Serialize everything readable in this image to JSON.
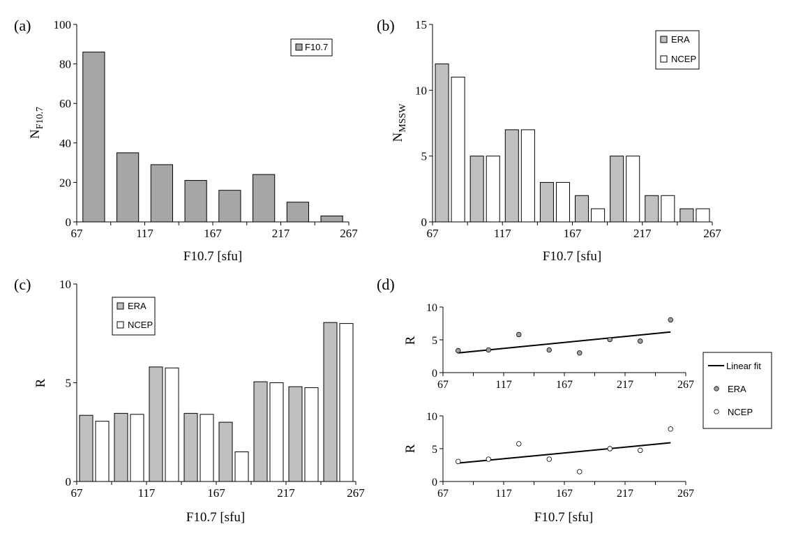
{
  "colors": {
    "era": "#c0c0c0",
    "f107": "#a6a6a6",
    "ncep": "#ffffff",
    "stroke": "#000000"
  },
  "chart_data": [
    {
      "id": "a",
      "panel_label": "(a)",
      "type": "bar",
      "xlabel": "F10.7 [sfu]",
      "ylabel": {
        "main": "N",
        "sub": "F10.7"
      },
      "xticks": [
        67,
        117,
        167,
        217,
        267
      ],
      "yticks": [
        0,
        20,
        40,
        60,
        80,
        100
      ],
      "ylim": [
        0,
        100
      ],
      "xlim": [
        67,
        267
      ],
      "categories": [
        "67-92",
        "92-117",
        "117-142",
        "142-167",
        "167-192",
        "192-217",
        "217-242",
        "242-267"
      ],
      "series": [
        {
          "name": "F10.7",
          "values": [
            86,
            35,
            29,
            21,
            16,
            24,
            10,
            3
          ]
        }
      ],
      "legend": {
        "position": "top-right",
        "entries": [
          "F10.7"
        ]
      }
    },
    {
      "id": "b",
      "panel_label": "(b)",
      "type": "bar",
      "xlabel": "F10.7 [sfu]",
      "ylabel": {
        "main": "N",
        "sub": "MSSW"
      },
      "xticks": [
        67,
        117,
        167,
        217,
        267
      ],
      "yticks": [
        0,
        5,
        10,
        15
      ],
      "ylim": [
        0,
        15
      ],
      "xlim": [
        67,
        267
      ],
      "categories": [
        "67-92",
        "92-117",
        "117-142",
        "142-167",
        "167-192",
        "192-217",
        "217-242",
        "242-267"
      ],
      "series": [
        {
          "name": "ERA",
          "values": [
            12,
            5,
            7,
            3,
            2,
            5,
            2,
            1
          ]
        },
        {
          "name": "NCEP",
          "values": [
            11,
            5,
            7,
            3,
            1,
            5,
            2,
            1
          ]
        }
      ],
      "legend": {
        "position": "top-right",
        "entries": [
          "ERA",
          "NCEP"
        ]
      }
    },
    {
      "id": "c",
      "panel_label": "(c)",
      "type": "bar",
      "xlabel": "F10.7 [sfu]",
      "ylabel": {
        "main": "R",
        "sub": ""
      },
      "xticks": [
        67,
        117,
        167,
        217,
        267
      ],
      "yticks": [
        0,
        5,
        10
      ],
      "ylim": [
        0,
        10
      ],
      "xlim": [
        67,
        267
      ],
      "categories": [
        "67-92",
        "92-117",
        "117-142",
        "142-167",
        "167-192",
        "192-217",
        "217-242",
        "242-267"
      ],
      "series": [
        {
          "name": "ERA",
          "values": [
            3.35,
            3.45,
            5.8,
            3.45,
            3.0,
            5.05,
            4.8,
            8.05
          ]
        },
        {
          "name": "NCEP",
          "values": [
            3.05,
            3.4,
            5.75,
            3.4,
            1.5,
            5.0,
            4.75,
            8.0
          ]
        }
      ],
      "legend": {
        "position": "top-left",
        "entries": [
          "ERA",
          "NCEP"
        ]
      }
    },
    {
      "id": "d1",
      "panel_label": "(d)",
      "type": "scatter",
      "xlabel": "",
      "ylabel": {
        "main": "R",
        "sub": ""
      },
      "xticks": [
        67,
        117,
        167,
        217,
        267
      ],
      "yticks": [
        0,
        5,
        10
      ],
      "ylim": [
        0,
        10
      ],
      "xlim": [
        67,
        267
      ],
      "series": [
        {
          "name": "ERA",
          "x": [
            79.5,
            104.5,
            129.5,
            154.5,
            179.5,
            204.5,
            229.5,
            254.5
          ],
          "y": [
            3.35,
            3.45,
            5.8,
            3.45,
            3.0,
            5.05,
            4.8,
            8.05
          ]
        }
      ],
      "fit": {
        "name": "Linear fit",
        "x": [
          79.5,
          254.5
        ],
        "y": [
          3.0,
          6.2
        ]
      }
    },
    {
      "id": "d2",
      "panel_label": "",
      "type": "scatter",
      "xlabel": "F10.7 [sfu]",
      "ylabel": {
        "main": "R",
        "sub": ""
      },
      "xticks": [
        67,
        117,
        167,
        217,
        267
      ],
      "yticks": [
        0,
        5,
        10
      ],
      "ylim": [
        0,
        10
      ],
      "xlim": [
        67,
        267
      ],
      "series": [
        {
          "name": "NCEP",
          "x": [
            79.5,
            104.5,
            129.5,
            154.5,
            179.5,
            204.5,
            229.5,
            254.5
          ],
          "y": [
            3.05,
            3.4,
            5.75,
            3.4,
            1.5,
            5.0,
            4.75,
            8.0
          ]
        }
      ],
      "fit": {
        "name": "Linear fit",
        "x": [
          79.5,
          254.5
        ],
        "y": [
          2.8,
          5.9
        ]
      }
    }
  ],
  "legend_d": {
    "entries": [
      "Linear fit",
      "ERA",
      "NCEP"
    ]
  }
}
